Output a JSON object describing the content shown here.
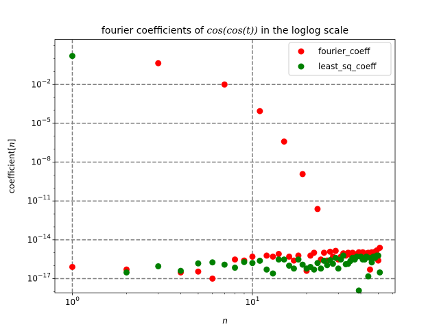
{
  "chart_data": {
    "type": "scatter",
    "title_prefix": "fourier coefficients of ",
    "title_math": "cos(cos(t))",
    "title_suffix": " in the loglog scale",
    "xlabel": "n",
    "ylabel_prefix": "coefficient[",
    "ylabel_math": "n",
    "ylabel_suffix": "]",
    "x_scale": "log",
    "y_scale": "log",
    "xlim": [
      0.8,
      62
    ],
    "ylim": [
      8e-19,
      30.0
    ],
    "x_major_ticks": [
      1,
      10
    ],
    "x_tick_labels": [
      {
        "base": "10",
        "exp": "0"
      },
      {
        "base": "10",
        "exp": "1"
      }
    ],
    "y_major_ticks": [
      1e-17,
      1e-14,
      1e-11,
      1e-08,
      1e-05,
      0.01
    ],
    "y_tick_labels": [
      {
        "base": "10",
        "exp": "−17"
      },
      {
        "base": "10",
        "exp": "−14"
      },
      {
        "base": "10",
        "exp": "−11"
      },
      {
        "base": "10",
        "exp": "−8"
      },
      {
        "base": "10",
        "exp": "−5"
      },
      {
        "base": "10",
        "exp": "−2"
      }
    ],
    "grid": true,
    "legend_placement": "upper-right",
    "series": [
      {
        "name": "fourier_coeff",
        "color": "#ff0000",
        "points": [
          [
            1,
            8e-17
          ],
          [
            2,
            5e-17
          ],
          [
            3,
            0.44
          ],
          [
            4,
            3e-17
          ],
          [
            5,
            3.5e-17
          ],
          [
            6,
            1e-17
          ],
          [
            7,
            0.01
          ],
          [
            8,
            3e-16
          ],
          [
            9,
            2.5e-16
          ],
          [
            10,
            5e-16
          ],
          [
            11,
            8.8e-05
          ],
          [
            12,
            6e-16
          ],
          [
            13,
            5e-16
          ],
          [
            14,
            8e-16
          ],
          [
            15,
            3.9e-07
          ],
          [
            16,
            5e-16
          ],
          [
            17,
            2.5e-16
          ],
          [
            18,
            6e-16
          ],
          [
            19,
            1.2e-09
          ],
          [
            20,
            4e-17
          ],
          [
            21,
            6e-16
          ],
          [
            22,
            1e-15
          ],
          [
            23,
            2.4e-12
          ],
          [
            24,
            3e-16
          ],
          [
            25,
            1e-15
          ],
          [
            26,
            2.5e-16
          ],
          [
            27,
            1.2e-15
          ],
          [
            28,
            5e-16
          ],
          [
            29,
            1.4e-15
          ],
          [
            30,
            3e-16
          ],
          [
            31,
            5e-16
          ],
          [
            32,
            9e-16
          ],
          [
            33,
            6e-16
          ],
          [
            34,
            1e-15
          ],
          [
            35,
            7e-16
          ],
          [
            36,
            1e-15
          ],
          [
            37,
            4e-16
          ],
          [
            38,
            8e-16
          ],
          [
            39,
            1.1e-15
          ],
          [
            40,
            6e-16
          ],
          [
            41,
            1.1e-15
          ],
          [
            42,
            5e-16
          ],
          [
            43,
            9e-16
          ],
          [
            44,
            1e-15
          ],
          [
            45,
            5e-17
          ],
          [
            46,
            1.1e-15
          ],
          [
            47,
            7e-16
          ],
          [
            48,
            1.2e-15
          ],
          [
            49,
            1.5e-15
          ],
          [
            50,
            2.5e-16
          ],
          [
            51,
            2.4e-15
          ]
        ]
      },
      {
        "name": "least_sq_coeff",
        "color": "#008000",
        "points": [
          [
            1,
            1.6
          ],
          [
            2,
            3e-17
          ],
          [
            3,
            9e-17
          ],
          [
            4,
            4e-17
          ],
          [
            5,
            1.5e-16
          ],
          [
            6,
            1.8e-16
          ],
          [
            7,
            1.2e-16
          ],
          [
            8,
            7e-17
          ],
          [
            9,
            1.9e-16
          ],
          [
            10,
            1.6e-16
          ],
          [
            11,
            2.4e-16
          ],
          [
            12,
            5e-17
          ],
          [
            13,
            2.5e-17
          ],
          [
            14,
            3e-16
          ],
          [
            15,
            3e-16
          ],
          [
            16,
            1e-16
          ],
          [
            17,
            6e-17
          ],
          [
            18,
            3e-16
          ],
          [
            19,
            1.2e-16
          ],
          [
            20,
            6e-17
          ],
          [
            21,
            8e-17
          ],
          [
            22,
            5e-17
          ],
          [
            23,
            1.6e-16
          ],
          [
            24,
            6e-17
          ],
          [
            25,
            2.4e-16
          ],
          [
            26,
            1.1e-16
          ],
          [
            27,
            2.7e-16
          ],
          [
            28,
            1.4e-16
          ],
          [
            29,
            4e-16
          ],
          [
            30,
            6e-17
          ],
          [
            31,
            3e-16
          ],
          [
            32,
            6e-16
          ],
          [
            33,
            1.3e-16
          ],
          [
            34,
            1.4e-16
          ],
          [
            35,
            2.3e-16
          ],
          [
            36,
            4e-16
          ],
          [
            37,
            3e-16
          ],
          [
            38,
            5e-16
          ],
          [
            39,
            1.2e-18
          ],
          [
            40,
            5e-16
          ],
          [
            41,
            3e-16
          ],
          [
            42,
            3e-16
          ],
          [
            43,
            5e-16
          ],
          [
            44,
            1.5e-17
          ],
          [
            45,
            4e-16
          ],
          [
            46,
            1.8e-16
          ],
          [
            47,
            5e-16
          ],
          [
            48,
            4e-16
          ],
          [
            49,
            6e-16
          ],
          [
            50,
            6e-16
          ],
          [
            51,
            3e-17
          ]
        ]
      }
    ]
  }
}
